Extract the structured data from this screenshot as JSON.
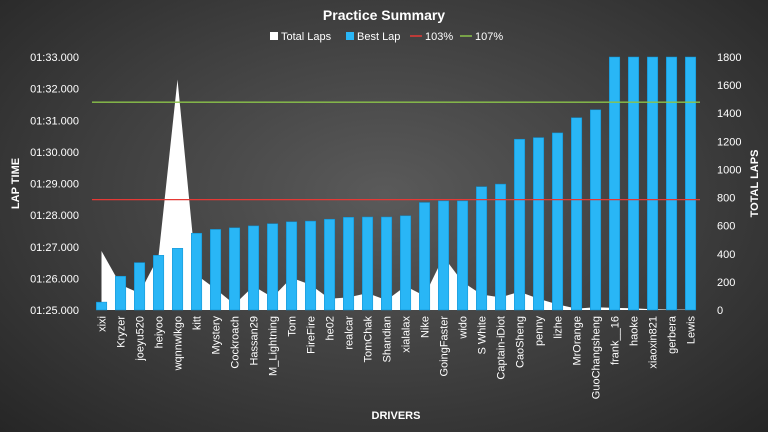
{
  "chart_data": {
    "type": "bar",
    "title": "Practice Summary",
    "xlabel": "DRIVERS",
    "ylabel": "LAP TIME",
    "y2label": "TOTAL LAPS",
    "ylim": [
      85.0,
      93.0
    ],
    "y2lim": [
      0,
      1800
    ],
    "y_ticks": [
      "01:25.000",
      "01:26.000",
      "01:27.000",
      "01:28.000",
      "01:29.000",
      "01:30.000",
      "01:31.000",
      "01:32.000",
      "01:33.000"
    ],
    "y2_ticks": [
      "0",
      "200",
      "400",
      "600",
      "800",
      "1000",
      "1200",
      "1400",
      "1600",
      "1800"
    ],
    "categories": [
      "xixi",
      "Kryzer",
      "joeyu520",
      "heiyoo",
      "wqnnwlkgo",
      "kitt",
      "Mystery",
      "Cockroach",
      "Hassan29",
      "M_Lightning",
      "Tom",
      "FireFire",
      "he02",
      "realcar",
      "TomChak",
      "Shandian",
      "xialalax",
      "Nike",
      "GoingFaster",
      "wido",
      "S White",
      "Captain-iDiot",
      "CaoSheng",
      "penny",
      "lizhe",
      "MrOrange",
      "GuoChangsheng",
      "frank__16",
      "haoke",
      "xiaoxin821",
      "gerbera",
      "Lewis"
    ],
    "legend_position": "top",
    "series": [
      {
        "name": "Total Laps",
        "type": "area",
        "axis": "secondary",
        "color": "#ffffff",
        "values": [
          420,
          180,
          120,
          380,
          1640,
          250,
          150,
          40,
          170,
          90,
          230,
          180,
          80,
          90,
          120,
          70,
          170,
          100,
          380,
          200,
          110,
          90,
          130,
          80,
          40,
          10,
          20,
          15,
          12,
          5,
          3,
          3
        ]
      },
      {
        "name": "Best Lap",
        "type": "bar",
        "axis": "primary",
        "color": "#29b6f6",
        "values": [
          85.25,
          86.07,
          86.5,
          86.73,
          86.95,
          87.43,
          87.55,
          87.6,
          87.66,
          87.73,
          87.79,
          87.81,
          87.87,
          87.93,
          87.94,
          87.94,
          87.98,
          88.4,
          88.45,
          88.45,
          88.9,
          88.98,
          90.4,
          90.45,
          90.6,
          91.08,
          91.33,
          93.0,
          93.0,
          93.0,
          93.0,
          93.0
        ]
      },
      {
        "name": "103%",
        "type": "hline",
        "axis": "primary",
        "color": "#e53935",
        "value": 88.49
      },
      {
        "name": "107%",
        "type": "hline",
        "axis": "primary",
        "color": "#8bc34a",
        "value": 91.57
      }
    ]
  }
}
